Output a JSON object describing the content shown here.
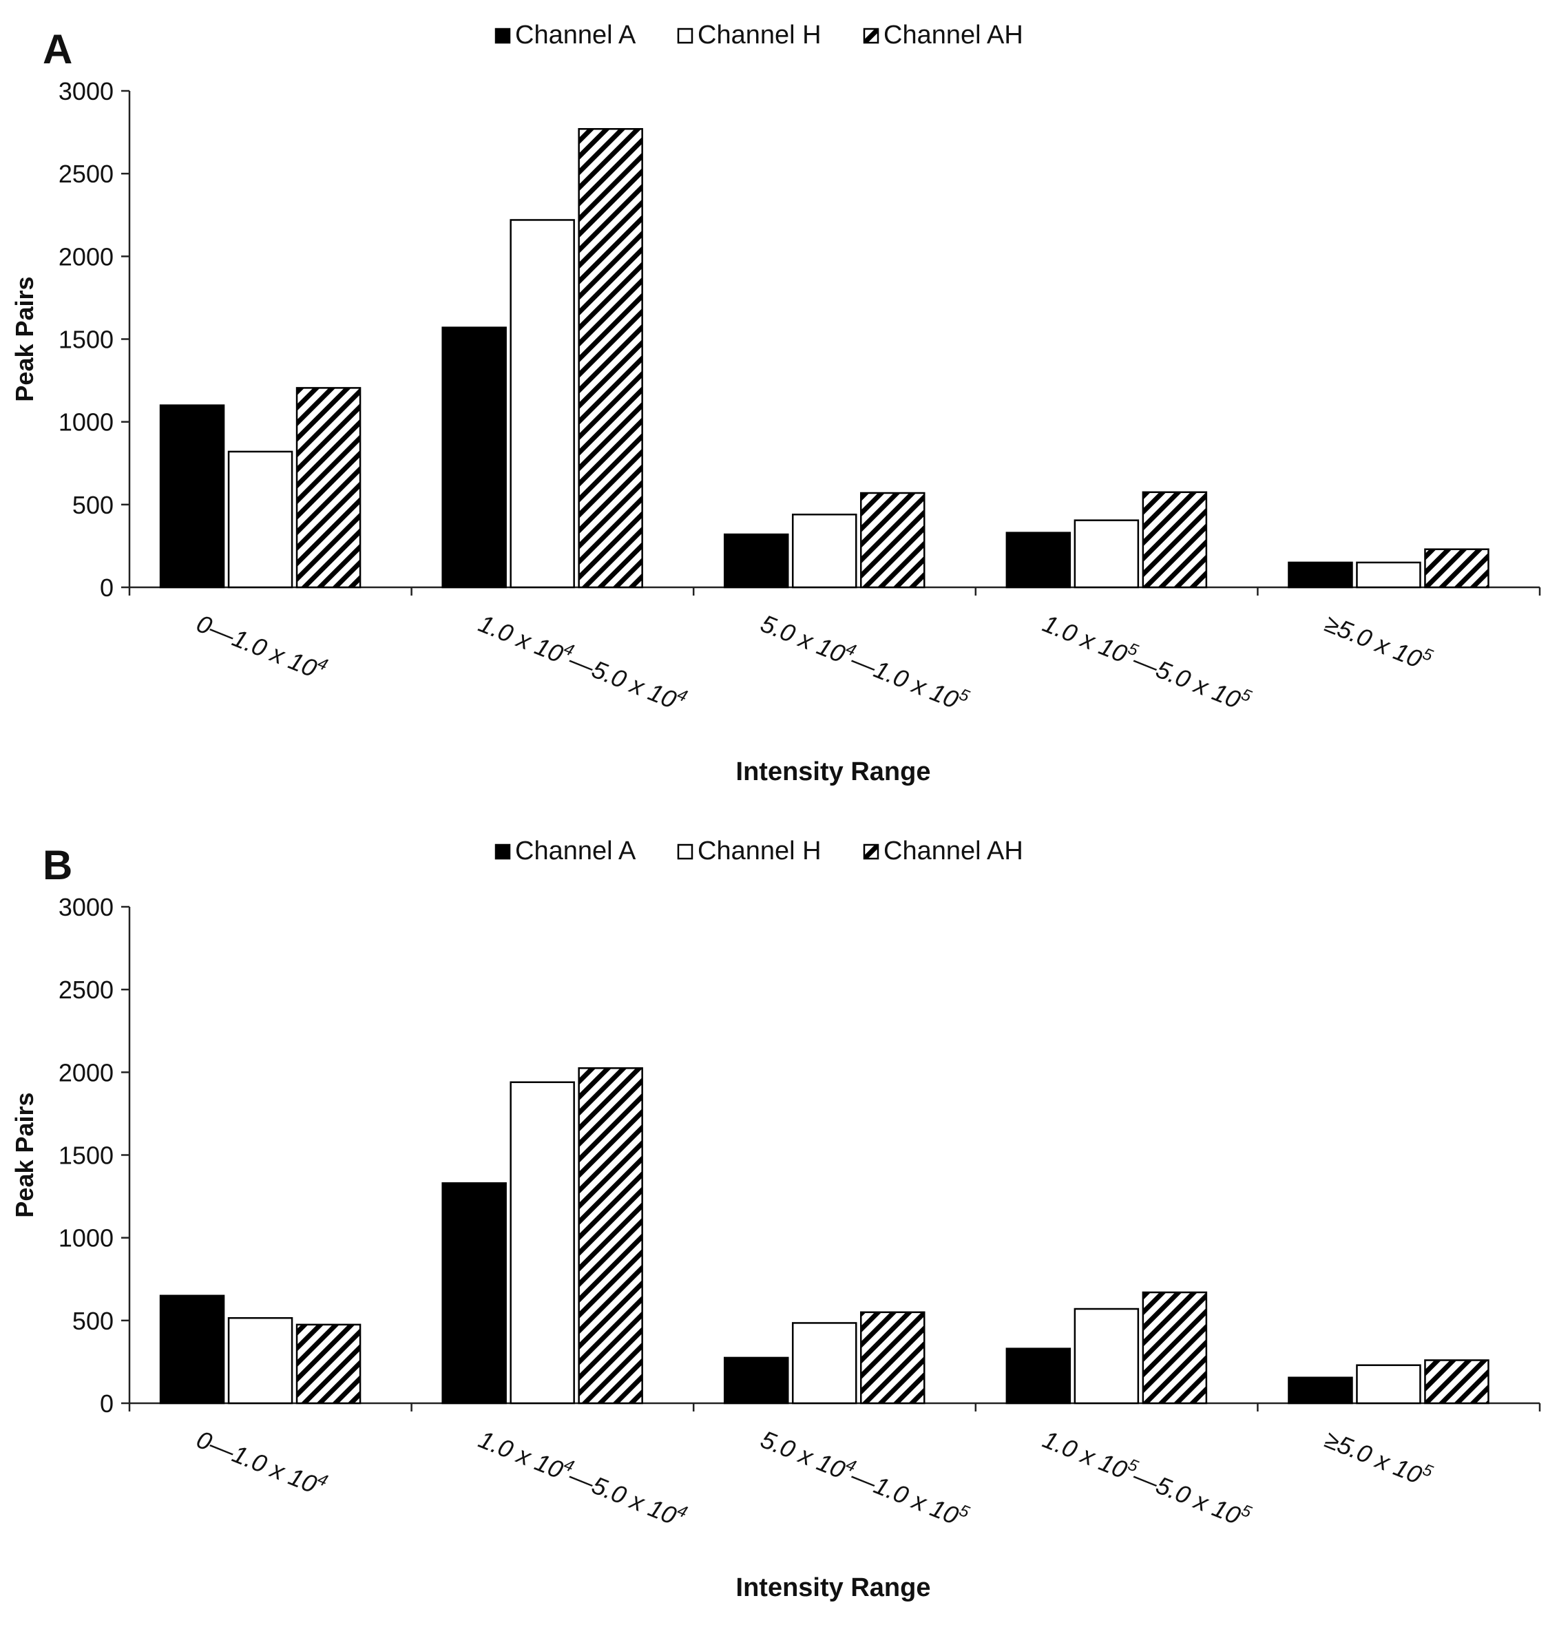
{
  "chart_data": [
    {
      "type": "bar",
      "panel_label": "A",
      "title": "",
      "xlabel": "Intensity Range",
      "ylabel": "Peak Pairs",
      "ylim": [
        0,
        3000
      ],
      "yticks": [
        "0",
        "500",
        "1000",
        "1500",
        "2000",
        "2500",
        "3000"
      ],
      "legend_position": "top-center",
      "categories": [
        {
          "parts": [
            [
              "0—1.0 x 10",
              false
            ],
            [
              "4",
              true
            ]
          ]
        },
        {
          "parts": [
            [
              "1.0 x 10",
              false
            ],
            [
              "4",
              true
            ],
            [
              "—5.0 x 10",
              false
            ],
            [
              "4",
              true
            ]
          ]
        },
        {
          "parts": [
            [
              "5.0 x 10",
              false
            ],
            [
              "4",
              true
            ],
            [
              "—1.0 x 10",
              false
            ],
            [
              "5",
              true
            ]
          ]
        },
        {
          "parts": [
            [
              "1.0 x 10",
              false
            ],
            [
              "5",
              true
            ],
            [
              "—5.0 x 10",
              false
            ],
            [
              "5",
              true
            ]
          ]
        },
        {
          "parts": [
            [
              "≥5.0 x 10",
              false
            ],
            [
              "5",
              true
            ]
          ]
        }
      ],
      "series": [
        {
          "name": "Channel A",
          "style": "solid",
          "values": [
            1100,
            1570,
            320,
            330,
            150
          ]
        },
        {
          "name": "Channel H",
          "style": "empty",
          "values": [
            820,
            2220,
            440,
            405,
            150
          ]
        },
        {
          "name": "Channel AH",
          "style": "hatched",
          "values": [
            1205,
            2770,
            570,
            575,
            230
          ]
        }
      ]
    },
    {
      "type": "bar",
      "panel_label": "B",
      "title": "",
      "xlabel": "Intensity Range",
      "ylabel": "Peak Pairs",
      "ylim": [
        0,
        3000
      ],
      "yticks": [
        "0",
        "500",
        "1000",
        "1500",
        "2000",
        "2500",
        "3000"
      ],
      "legend_position": "top-center",
      "categories": [
        {
          "parts": [
            [
              "0—1.0 x 10",
              false
            ],
            [
              "4",
              true
            ]
          ]
        },
        {
          "parts": [
            [
              "1.0 x 10",
              false
            ],
            [
              "4",
              true
            ],
            [
              "—5.0 x 10",
              false
            ],
            [
              "4",
              true
            ]
          ]
        },
        {
          "parts": [
            [
              "5.0 x 10",
              false
            ],
            [
              "4",
              true
            ],
            [
              "—1.0 x 10",
              false
            ],
            [
              "5",
              true
            ]
          ]
        },
        {
          "parts": [
            [
              "1.0 x 10",
              false
            ],
            [
              "5",
              true
            ],
            [
              "—5.0 x 10",
              false
            ],
            [
              "5",
              true
            ]
          ]
        },
        {
          "parts": [
            [
              "≥5.0 x 10",
              false
            ],
            [
              "5",
              true
            ]
          ]
        }
      ],
      "series": [
        {
          "name": "Channel A",
          "style": "solid",
          "values": [
            650,
            1330,
            275,
            330,
            155
          ]
        },
        {
          "name": "Channel H",
          "style": "empty",
          "values": [
            515,
            1940,
            485,
            570,
            230
          ]
        },
        {
          "name": "Channel AH",
          "style": "hatched",
          "values": [
            475,
            2025,
            550,
            670,
            260
          ]
        }
      ]
    }
  ]
}
